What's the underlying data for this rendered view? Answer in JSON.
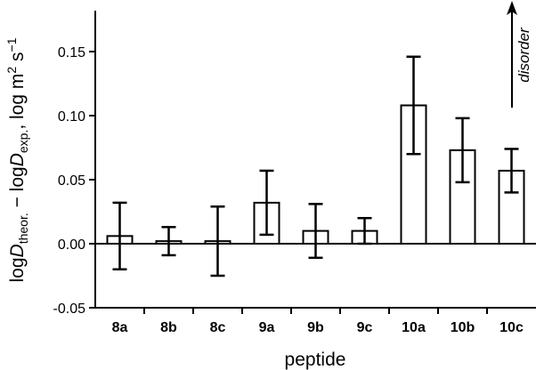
{
  "chart_data": {
    "type": "bar",
    "title": "",
    "xlabel": "peptide",
    "ylabel": {
      "parts": [
        "log",
        "D",
        "theor.",
        " − log",
        "D",
        "exp.",
        ", log m",
        "2",
        " s",
        "−1"
      ],
      "text": "logD_theor. − logD_exp., log m² s⁻¹"
    },
    "categories": [
      "8a",
      "8b",
      "8c",
      "9a",
      "9b",
      "9c",
      "10a",
      "10b",
      "10c"
    ],
    "values": [
      0.006,
      0.002,
      0.002,
      0.032,
      0.01,
      0.01,
      0.108,
      0.073,
      0.057
    ],
    "error_upper": [
      0.032,
      0.013,
      0.029,
      0.057,
      0.031,
      0.02,
      0.146,
      0.098,
      0.074
    ],
    "error_lower": [
      -0.02,
      -0.009,
      -0.025,
      0.007,
      -0.011,
      0.0,
      0.07,
      0.048,
      0.04
    ],
    "ylim": [
      -0.05,
      0.18
    ],
    "yticks": [
      -0.05,
      0.0,
      0.05,
      0.1,
      0.15
    ],
    "ytick_labels": [
      "-0.05",
      "0.00",
      "0.05",
      "0.10",
      "0.15"
    ],
    "grid": false,
    "annotation": {
      "text": "disorder",
      "direction": "up"
    },
    "colors": {
      "bar_fill": "#ffffff",
      "stroke": "#000000"
    }
  }
}
